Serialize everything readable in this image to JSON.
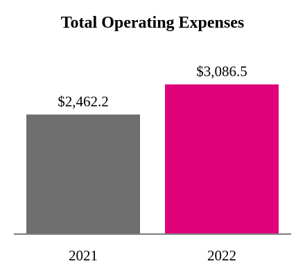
{
  "chart_data": {
    "type": "bar",
    "title": "Total Operating Expenses",
    "categories": [
      "2021",
      "2022"
    ],
    "values": [
      2462.2,
      3086.5
    ],
    "value_labels": [
      "$2,462.2",
      "$3,086.5"
    ],
    "colors": [
      "#6f6f6f",
      "#e0007a"
    ],
    "axis_color": "#7a7a7a",
    "ylim": [
      0,
      3400
    ],
    "grid": false,
    "legend": "none"
  }
}
